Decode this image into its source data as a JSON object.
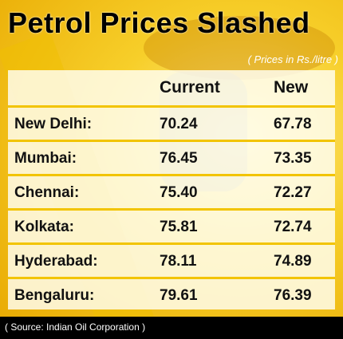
{
  "header": {
    "title": "Petrol Prices Slashed",
    "subtitle": "( Prices in Rs./litre )"
  },
  "table": {
    "columns": [
      "Current",
      "New"
    ],
    "rows": [
      [
        "New Delhi:",
        "70.24",
        "67.78"
      ],
      [
        "Mumbai:",
        "76.45",
        "73.35"
      ],
      [
        "Chennai:",
        "75.40",
        "72.27"
      ],
      [
        "Kolkata:",
        "75.81",
        "72.74"
      ],
      [
        "Hyderabad:",
        "78.11",
        "74.89"
      ],
      [
        "Bengaluru:",
        "79.61",
        "76.39"
      ]
    ]
  },
  "footer": {
    "source": "( Source: Indian Oil Corporation )"
  }
}
